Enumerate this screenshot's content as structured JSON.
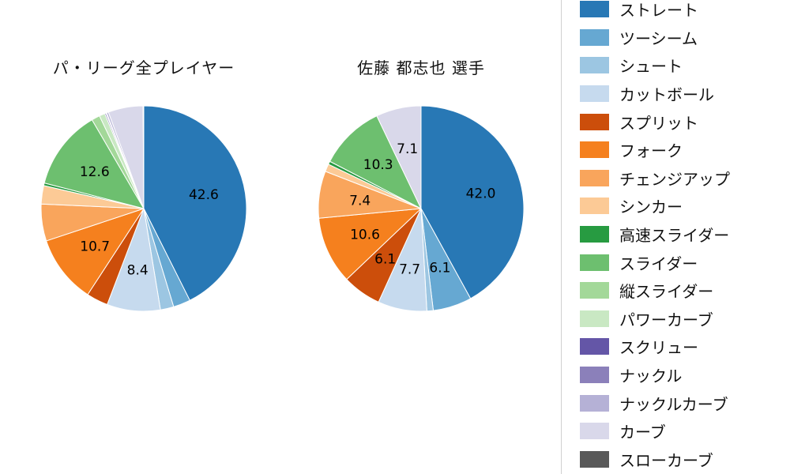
{
  "titles": {
    "left": "パ・リーグ全プレイヤー",
    "right": "佐藤 都志也 選手"
  },
  "legend": {
    "position": "right",
    "items": [
      {
        "label": "ストレート",
        "color": "#2878b5"
      },
      {
        "label": "ツーシーム",
        "color": "#66a8d2"
      },
      {
        "label": "シュート",
        "color": "#9cc6e2"
      },
      {
        "label": "カットボール",
        "color": "#c6daee"
      },
      {
        "label": "スプリット",
        "color": "#cc4e0b"
      },
      {
        "label": "フォーク",
        "color": "#f5801e"
      },
      {
        "label": "チェンジアップ",
        "color": "#f9a55c"
      },
      {
        "label": "シンカー",
        "color": "#fcca96"
      },
      {
        "label": "高速スライダー",
        "color": "#279b41"
      },
      {
        "label": "スライダー",
        "color": "#6dbf6f"
      },
      {
        "label": "縦スライダー",
        "color": "#a3d899"
      },
      {
        "label": "パワーカーブ",
        "color": "#c9e8c3"
      },
      {
        "label": "スクリュー",
        "color": "#6456a7"
      },
      {
        "label": "ナックル",
        "color": "#8b80ba"
      },
      {
        "label": "ナックルカーブ",
        "color": "#b5b1d6"
      },
      {
        "label": "カーブ",
        "color": "#d9d8ea"
      },
      {
        "label": "スローカーブ",
        "color": "#595959"
      }
    ]
  },
  "chart_data": [
    {
      "type": "pie",
      "title": "パ・リーグ全プレイヤー",
      "categories": [
        "ストレート",
        "ツーシーム",
        "シュート",
        "カットボール",
        "スプリット",
        "フォーク",
        "チェンジアップ",
        "シンカー",
        "高速スライダー",
        "スライダー",
        "縦スライダー",
        "パワーカーブ",
        "スクリュー",
        "ナックル",
        "ナックルカーブ",
        "カーブ",
        "スローカーブ"
      ],
      "values": [
        42.6,
        2.7,
        2.1,
        8.4,
        3.4,
        10.7,
        5.8,
        2.9,
        0.4,
        12.6,
        1.3,
        0.9,
        0.2,
        0.1,
        0.3,
        5.5,
        0.1
      ],
      "unit": "percent",
      "start_angle": "top",
      "direction": "clockwise",
      "label_min": 6.0,
      "shown_value_labels": [
        "42.6",
        "8.4",
        "10.7",
        "12.6"
      ]
    },
    {
      "type": "pie",
      "title": "佐藤 都志也 選手",
      "categories": [
        "ストレート",
        "ツーシーム",
        "シュート",
        "カットボール",
        "スプリット",
        "フォーク",
        "チェンジアップ",
        "シンカー",
        "高速スライダー",
        "スライダー",
        "縦スライダー",
        "パワーカーブ",
        "スクリュー",
        "ナックル",
        "ナックルカーブ",
        "カーブ",
        "スローカーブ"
      ],
      "values": [
        42.0,
        6.1,
        1.0,
        7.7,
        6.1,
        10.6,
        7.4,
        1.2,
        0.5,
        10.3,
        0,
        0,
        0,
        0,
        0,
        7.1,
        0
      ],
      "unit": "percent",
      "start_angle": "top",
      "direction": "clockwise",
      "label_min": 6.0,
      "shown_value_labels": [
        "42.0",
        "6.1",
        "7.7",
        "6.1",
        "10.6",
        "7.4",
        "10.3",
        "7.1"
      ]
    }
  ]
}
